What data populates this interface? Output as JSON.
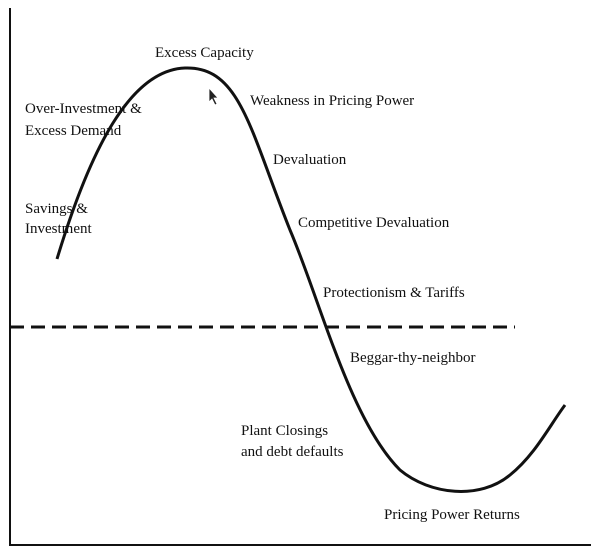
{
  "labels": [
    {
      "lines": [
        "Excess Capacity"
      ]
    },
    {
      "lines": [
        "Weakness in Pricing Power"
      ]
    },
    {
      "lines": [
        "Over-Investment &",
        "Excess Demand"
      ]
    },
    {
      "lines": [
        "Devaluation"
      ]
    },
    {
      "lines": [
        "Savings &",
        "Investment"
      ]
    },
    {
      "lines": [
        "Competitive Devaluation"
      ]
    },
    {
      "lines": [
        "Protectionism & Tariffs"
      ]
    },
    {
      "lines": [
        "Beggar-thy-neighbor"
      ]
    },
    {
      "lines": [
        "Plant Closings",
        "and debt defaults"
      ]
    },
    {
      "lines": [
        "Pricing Power Returns"
      ]
    }
  ]
}
